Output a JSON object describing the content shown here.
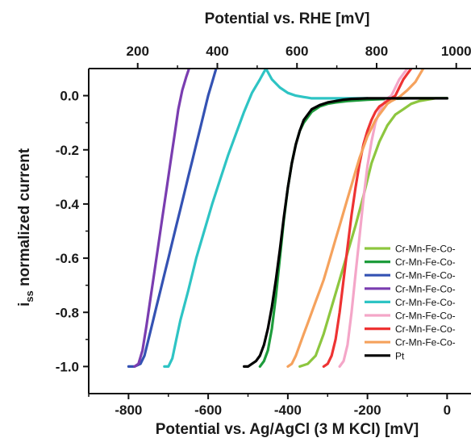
{
  "chart_data": {
    "type": "line",
    "xlabel": "Potential vs. Ag/AgCl (3 M KCl) [mV]",
    "x2label": "Potential vs. RHE [mV]",
    "ylabel_main": "i",
    "ylabel_sub": "ss",
    "ylabel_rest": " normalized current",
    "xlim": [
      -900,
      60
    ],
    "ylim": [
      -1.1,
      0.1
    ],
    "x_ticks": [
      -800,
      -600,
      -400,
      -200,
      0
    ],
    "x_tick_labels": [
      "-800",
      "-600",
      "-400",
      "-200",
      "0"
    ],
    "x2_ticks": [
      -777,
      -577,
      -377,
      -177,
      23
    ],
    "x2_tick_labels": [
      "200",
      "400",
      "600",
      "800",
      "1000"
    ],
    "y_ticks": [
      0,
      -0.2,
      -0.4,
      -0.6,
      -0.8,
      -1.0
    ],
    "y_tick_labels": [
      "0.0",
      "-0.2",
      "-0.4",
      "-0.6",
      "-0.8",
      "-1.0"
    ],
    "legend_position": "bottom-right",
    "series": [
      {
        "name": "Cr-Mn-Fe-Co-",
        "color": "#8dc63f",
        "x": [
          -370,
          -350,
          -330,
          -310,
          -290,
          -270,
          -250,
          -230,
          -210,
          -190,
          -170,
          -150,
          -130,
          -110,
          -90,
          -70,
          -50,
          -30,
          -10,
          0
        ],
        "y": [
          -1.0,
          -0.99,
          -0.96,
          -0.88,
          -0.78,
          -0.68,
          -0.58,
          -0.48,
          -0.37,
          -0.25,
          -0.17,
          -0.11,
          -0.07,
          -0.05,
          -0.03,
          -0.02,
          -0.015,
          -0.01,
          -0.01,
          -0.01
        ]
      },
      {
        "name": "Cr-Mn-Fe-Co-",
        "color": "#1e9c3c",
        "x": [
          -470,
          -460,
          -450,
          -440,
          -430,
          -420,
          -410,
          -400,
          -390,
          -380,
          -370,
          -360,
          -340,
          -320,
          -300,
          -280,
          -250,
          -200,
          -150,
          -100,
          -50,
          0
        ],
        "y": [
          -1.0,
          -0.98,
          -0.94,
          -0.86,
          -0.74,
          -0.6,
          -0.46,
          -0.34,
          -0.25,
          -0.18,
          -0.13,
          -0.1,
          -0.06,
          -0.04,
          -0.03,
          -0.025,
          -0.02,
          -0.015,
          -0.012,
          -0.01,
          -0.01,
          -0.01
        ]
      },
      {
        "name": "Cr-Mn-Fe-Co-",
        "color": "#3452b3",
        "x": [
          -800,
          -785,
          -770,
          -760,
          -750,
          -740,
          -730,
          -720,
          -710,
          -700,
          -690,
          -680,
          -670,
          -660,
          -650,
          -640,
          -630,
          -620,
          -610,
          -600,
          -590,
          -580
        ],
        "y": [
          -1.0,
          -1.0,
          -0.99,
          -0.96,
          -0.9,
          -0.84,
          -0.78,
          -0.72,
          -0.66,
          -0.6,
          -0.54,
          -0.48,
          -0.42,
          -0.36,
          -0.3,
          -0.24,
          -0.18,
          -0.12,
          -0.06,
          0.0,
          0.05,
          0.1
        ]
      },
      {
        "name": "Cr-Mn-Fe-Co-",
        "color": "#7a3db0",
        "x": [
          -785,
          -775,
          -765,
          -755,
          -745,
          -735,
          -725,
          -715,
          -705,
          -695,
          -685,
          -675,
          -665,
          -655,
          -648
        ],
        "y": [
          -1.0,
          -0.99,
          -0.94,
          -0.85,
          -0.75,
          -0.65,
          -0.55,
          -0.45,
          -0.35,
          -0.25,
          -0.15,
          -0.05,
          0.02,
          0.07,
          0.1
        ]
      },
      {
        "name": "Cr-Mn-Fe-Co-",
        "color": "#2ec4c4",
        "x": [
          -710,
          -700,
          -690,
          -680,
          -670,
          -650,
          -630,
          -610,
          -590,
          -570,
          -550,
          -530,
          -510,
          -490,
          -470,
          -455,
          -440,
          -420,
          -400,
          -380,
          -360,
          -340,
          -320,
          -300,
          -280,
          -260,
          -240,
          -220,
          -200
        ],
        "y": [
          -1.0,
          -1.0,
          -0.97,
          -0.9,
          -0.83,
          -0.72,
          -0.6,
          -0.5,
          -0.4,
          -0.31,
          -0.22,
          -0.14,
          -0.06,
          0.01,
          0.06,
          0.1,
          0.06,
          0.03,
          0.01,
          0.0,
          -0.005,
          -0.01,
          -0.01,
          -0.01,
          -0.01,
          -0.01,
          -0.01,
          -0.01,
          -0.01
        ]
      },
      {
        "name": "Cr-Mn-Fe-Co-",
        "color": "#f4a6c8",
        "x": [
          -270,
          -260,
          -250,
          -240,
          -230,
          -220,
          -210,
          -200,
          -190,
          -180,
          -170,
          -160,
          -150,
          -140,
          -130,
          -120,
          -110,
          -100
        ],
        "y": [
          -1.0,
          -0.98,
          -0.92,
          -0.8,
          -0.66,
          -0.52,
          -0.38,
          -0.26,
          -0.17,
          -0.1,
          -0.06,
          -0.03,
          -0.01,
          0.0,
          0.03,
          0.06,
          0.08,
          0.1
        ]
      },
      {
        "name": "Cr-Mn-Fe-Co-",
        "color": "#ee3333",
        "x": [
          -310,
          -300,
          -290,
          -280,
          -270,
          -260,
          -250,
          -240,
          -230,
          -220,
          -210,
          -200,
          -190,
          -180,
          -170,
          -160,
          -150,
          -140,
          -130,
          -120,
          -110,
          -100,
          -90
        ],
        "y": [
          -1.0,
          -0.99,
          -0.96,
          -0.9,
          -0.8,
          -0.68,
          -0.56,
          -0.44,
          -0.34,
          -0.25,
          -0.18,
          -0.13,
          -0.09,
          -0.06,
          -0.04,
          -0.03,
          -0.02,
          -0.01,
          0.0,
          0.03,
          0.06,
          0.08,
          0.1
        ]
      },
      {
        "name": "Cr-Mn-Fe-Co-",
        "color": "#f5a25d",
        "x": [
          -400,
          -390,
          -380,
          -370,
          -360,
          -350,
          -340,
          -330,
          -320,
          -310,
          -300,
          -290,
          -280,
          -270,
          -260,
          -250,
          -240,
          -230,
          -220,
          -210,
          -200,
          -190,
          -180,
          -170,
          -160,
          -150,
          -140,
          -120,
          -100,
          -80,
          -60
        ],
        "y": [
          -1.0,
          -0.99,
          -0.96,
          -0.92,
          -0.88,
          -0.84,
          -0.8,
          -0.76,
          -0.72,
          -0.68,
          -0.63,
          -0.58,
          -0.53,
          -0.48,
          -0.43,
          -0.38,
          -0.33,
          -0.28,
          -0.23,
          -0.19,
          -0.15,
          -0.12,
          -0.09,
          -0.07,
          -0.05,
          -0.03,
          -0.02,
          -0.005,
          0.02,
          0.05,
          0.1
        ]
      },
      {
        "name": "Pt",
        "color": "#000000",
        "x": [
          -510,
          -500,
          -490,
          -480,
          -470,
          -460,
          -450,
          -440,
          -430,
          -420,
          -410,
          -400,
          -390,
          -380,
          -370,
          -360,
          -350,
          -340,
          -320,
          -300,
          -280,
          -260,
          -240,
          -200,
          -150,
          -100,
          -50,
          0
        ],
        "y": [
          -1.0,
          -1.0,
          -0.99,
          -0.98,
          -0.96,
          -0.92,
          -0.86,
          -0.78,
          -0.68,
          -0.57,
          -0.45,
          -0.34,
          -0.25,
          -0.18,
          -0.13,
          -0.09,
          -0.07,
          -0.05,
          -0.035,
          -0.025,
          -0.02,
          -0.015,
          -0.012,
          -0.01,
          -0.01,
          -0.01,
          -0.01,
          -0.01
        ]
      }
    ]
  }
}
